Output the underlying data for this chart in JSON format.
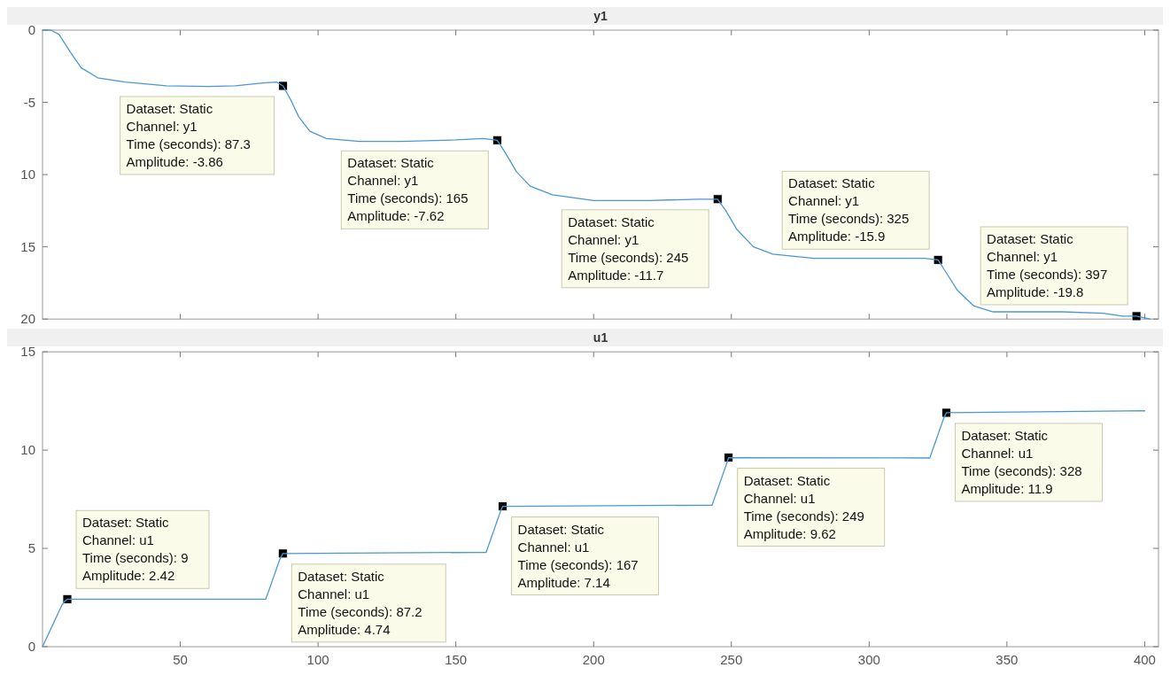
{
  "chart_data": [
    {
      "type": "line",
      "title": "y1",
      "xlim": [
        0,
        405
      ],
      "xticks": [
        50,
        100,
        150,
        200,
        250,
        300,
        350,
        400
      ],
      "ylim": [
        -20,
        0
      ],
      "yticks": [
        0,
        -5,
        {
          "value": -10,
          "label": "10"
        },
        {
          "value": -15,
          "label": "15"
        },
        {
          "value": -20,
          "label": "20"
        }
      ],
      "tick_labels": "y",
      "x": [
        0,
        3,
        6,
        10,
        14,
        20,
        30,
        45,
        60,
        70,
        80,
        85,
        87.3,
        90,
        93,
        97,
        103,
        115,
        130,
        150,
        160,
        165,
        168,
        172,
        177,
        185,
        200,
        220,
        238,
        245,
        248,
        252,
        258,
        265,
        280,
        300,
        320,
        325,
        328,
        332,
        338,
        345,
        370,
        385,
        392,
        397,
        402
      ],
      "series": [
        {
          "color": "#4a97d6",
          "values": [
            0,
            0,
            -0.3,
            -1.5,
            -2.6,
            -3.3,
            -3.6,
            -3.85,
            -3.9,
            -3.85,
            -3.65,
            -3.6,
            -3.86,
            -4.8,
            -6,
            -7,
            -7.5,
            -7.7,
            -7.7,
            -7.6,
            -7.5,
            -7.62,
            -8.5,
            -9.8,
            -10.8,
            -11.4,
            -11.8,
            -11.8,
            -11.7,
            -11.7,
            -12.5,
            -13.8,
            -15,
            -15.5,
            -15.8,
            -15.8,
            -15.8,
            -15.9,
            -16.8,
            -18,
            -19.1,
            -19.5,
            -19.5,
            -19.6,
            -19.8,
            -19.8,
            -20
          ]
        }
      ],
      "annotations": [
        {
          "text": "Dataset: Static\nChannel: y1\nTime (seconds): 87.3\nAmplitude: -3.86",
          "x": 87.3,
          "y": -3.86
        },
        {
          "text": "Dataset: Static\nChannel: y1\nTime (seconds): 165\nAmplitude: -7.62",
          "x": 165,
          "y": -7.62
        },
        {
          "text": "Dataset: Static\nChannel: y1\nTime (seconds): 245\nAmplitude: -11.7",
          "x": 245,
          "y": -11.7
        },
        {
          "text": "Dataset: Static\nChannel: y1\nTime (seconds): 325\nAmplitude: -15.9",
          "x": 325,
          "y": -15.9
        },
        {
          "text": "Dataset: Static\nChannel: y1\nTime (seconds): 397\nAmplitude: -19.8",
          "x": 397,
          "y": -19.8
        }
      ]
    },
    {
      "type": "line",
      "title": "u1",
      "xlim": [
        0,
        405
      ],
      "xticks": [
        50,
        100,
        150,
        200,
        250,
        300,
        350,
        400
      ],
      "ylim": [
        0,
        15
      ],
      "yticks": [
        0,
        5,
        10,
        15
      ],
      "x": [
        0,
        1,
        2,
        3,
        4,
        5,
        6,
        7,
        8,
        9,
        81,
        82,
        83,
        84,
        85,
        86,
        87.2,
        161,
        162,
        163,
        164,
        165,
        166,
        167,
        243,
        244,
        245,
        246,
        247,
        248,
        249,
        322,
        323,
        324,
        325,
        326,
        327,
        328,
        400
      ],
      "series": [
        {
          "color": "#4a97d6",
          "values": [
            0,
            0.3,
            0.6,
            0.9,
            1.2,
            1.5,
            1.8,
            2.1,
            2.3,
            2.42,
            2.42,
            2.8,
            3.2,
            3.6,
            4,
            4.4,
            4.74,
            4.8,
            5.2,
            5.6,
            6,
            6.4,
            6.8,
            7.14,
            7.2,
            7.6,
            8,
            8.4,
            8.8,
            9.2,
            9.62,
            9.6,
            10,
            10.4,
            10.8,
            11.2,
            11.6,
            11.9,
            12
          ]
        }
      ],
      "annotations": [
        {
          "text": "Dataset: Static\nChannel: u1\nTime (seconds): 9\nAmplitude: 2.42",
          "x": 9,
          "y": 2.42
        },
        {
          "text": "Dataset: Static\nChannel: u1\nTime (seconds): 87.2\nAmplitude: 4.74",
          "x": 87.2,
          "y": 4.74
        },
        {
          "text": "Dataset: Static\nChannel: u1\nTime (seconds): 167\nAmplitude: 7.14",
          "x": 167,
          "y": 7.14
        },
        {
          "text": "Dataset: Static\nChannel: u1\nTime (seconds): 249\nAmplitude: 9.62",
          "x": 249,
          "y": 9.62
        },
        {
          "text": "Dataset: Static\nChannel: u1\nTime (seconds): 328\nAmplitude: 11.9",
          "x": 328,
          "y": 11.9
        }
      ]
    }
  ]
}
